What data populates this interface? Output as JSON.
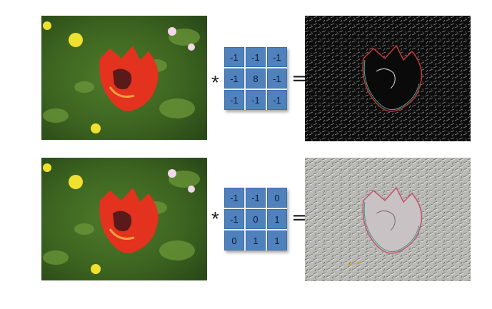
{
  "rows": [
    {
      "operator_star": "*",
      "operator_equals": "=",
      "kernel": [
        [
          "-1",
          "-1",
          "-1"
        ],
        [
          "-1",
          "8",
          "-1"
        ],
        [
          "-1",
          "-1",
          "-1"
        ]
      ]
    },
    {
      "operator_star": "*",
      "operator_equals": "=",
      "kernel": [
        [
          "-1",
          "-1",
          "0"
        ],
        [
          "-1",
          "0",
          "1"
        ],
        [
          "0",
          "1",
          "1"
        ]
      ]
    }
  ]
}
